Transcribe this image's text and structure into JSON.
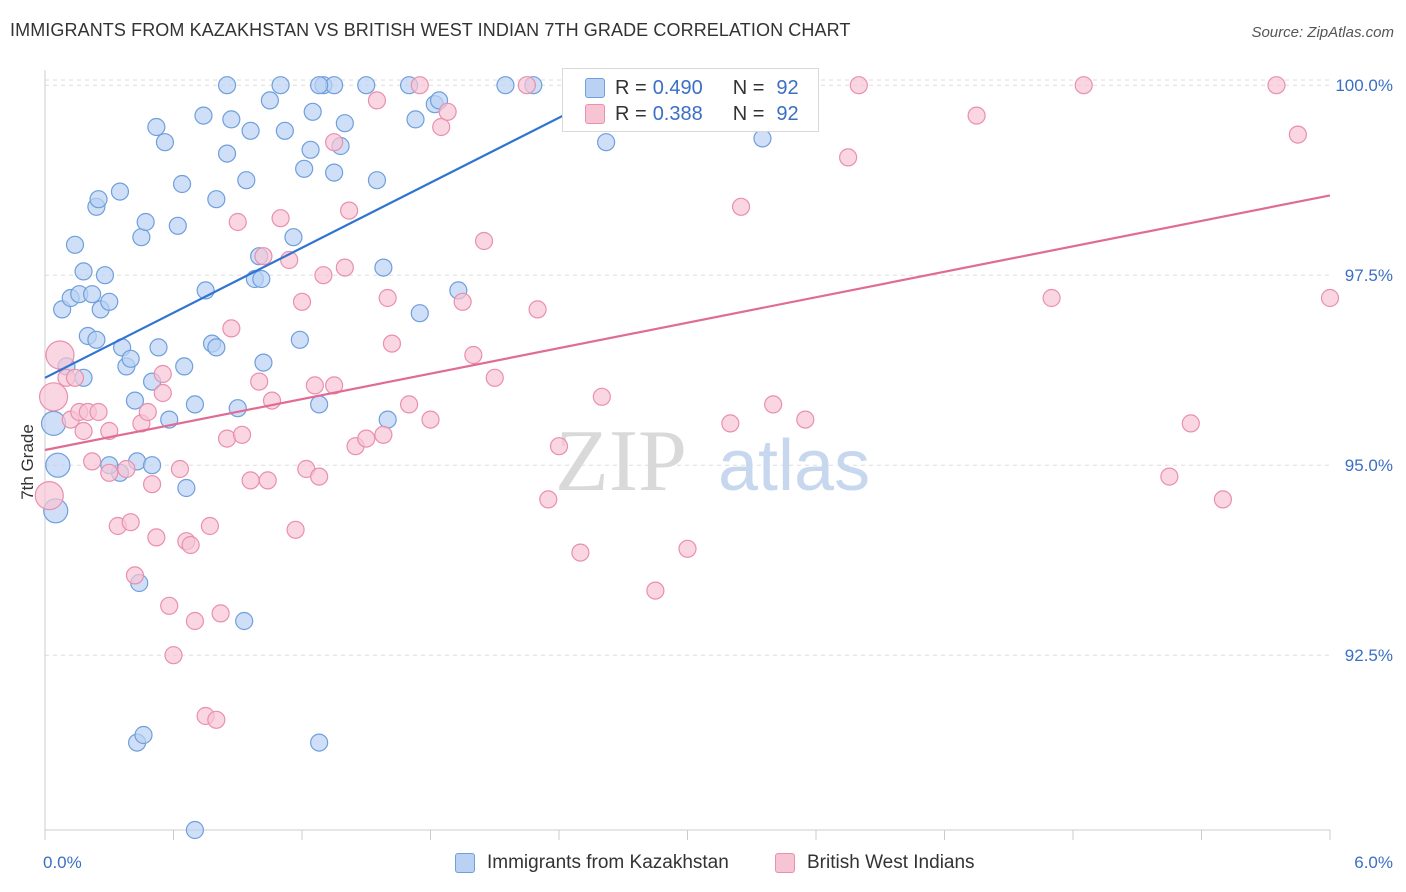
{
  "header": {
    "title": "IMMIGRANTS FROM KAZAKHSTAN VS BRITISH WEST INDIAN 7TH GRADE CORRELATION CHART",
    "source": "Source: ZipAtlas.com"
  },
  "watermark": {
    "zip": "ZIP",
    "atlas": "atlas"
  },
  "colors": {
    "blue_fill": "#b9d1f3",
    "blue_stroke": "#6f9fdc",
    "blue_line": "#2f74d0",
    "pink_fill": "#f7c4d4",
    "pink_stroke": "#ea8fae",
    "pink_line": "#e06c96",
    "axis_label": "#3b6fc4",
    "grid": "#dddddd"
  },
  "legend": {
    "r_label": "R =",
    "n_label": "N =",
    "rows": [
      {
        "r": "0.490",
        "n": "92"
      },
      {
        "r": "0.388",
        "n": "92"
      }
    ]
  },
  "bottom_legend": [
    {
      "label": "Immigrants from Kazakhstan"
    },
    {
      "label": "British West Indians"
    }
  ],
  "chart_data": {
    "type": "scatter",
    "ylabel": "7th Grade",
    "xlim": [
      0,
      6
    ],
    "ylim": [
      90.2,
      100.2
    ],
    "x_tick_labels": [
      {
        "value": 0,
        "label": "0.0%"
      },
      {
        "value": 6,
        "label": "6.0%"
      }
    ],
    "y_ticks": [
      {
        "value": 92.5,
        "label": "92.5%"
      },
      {
        "value": 95.0,
        "label": "95.0%"
      },
      {
        "value": 97.5,
        "label": "97.5%"
      },
      {
        "value": 100.0,
        "label": "100.0%"
      }
    ],
    "x_minor_ticks": [
      0.6,
      1.2,
      1.8,
      2.4,
      3.0,
      3.6,
      4.2,
      4.8,
      5.4,
      6.0
    ],
    "grid": true,
    "legend_position": "top-center",
    "series": [
      {
        "name": "Immigrants from Kazakhstan",
        "color": "#b9d1f3",
        "trend": {
          "x": [
            0.0,
            2.7
          ],
          "y": [
            96.15,
            100.0
          ]
        },
        "points": [
          [
            0.04,
            95.55
          ],
          [
            0.06,
            95.0
          ],
          [
            0.05,
            94.4
          ],
          [
            0.08,
            97.05
          ],
          [
            0.1,
            96.3
          ],
          [
            0.12,
            97.2
          ],
          [
            0.14,
            97.9
          ],
          [
            0.16,
            97.25
          ],
          [
            0.18,
            97.55
          ],
          [
            0.18,
            96.15
          ],
          [
            0.2,
            96.7
          ],
          [
            0.22,
            97.25
          ],
          [
            0.24,
            96.65
          ],
          [
            0.26,
            97.05
          ],
          [
            0.28,
            97.5
          ],
          [
            0.3,
            97.15
          ],
          [
            0.24,
            98.4
          ],
          [
            0.25,
            98.5
          ],
          [
            0.35,
            98.6
          ],
          [
            0.36,
            96.55
          ],
          [
            0.38,
            96.3
          ],
          [
            0.4,
            96.4
          ],
          [
            0.42,
            95.85
          ],
          [
            0.45,
            98.0
          ],
          [
            0.47,
            98.2
          ],
          [
            0.5,
            96.1
          ],
          [
            0.53,
            96.55
          ],
          [
            0.56,
            99.25
          ],
          [
            0.52,
            99.45
          ],
          [
            0.58,
            95.6
          ],
          [
            0.62,
            98.15
          ],
          [
            0.64,
            98.7
          ],
          [
            0.66,
            94.7
          ],
          [
            0.7,
            95.8
          ],
          [
            0.74,
            99.6
          ],
          [
            0.75,
            97.3
          ],
          [
            0.78,
            96.6
          ],
          [
            0.8,
            98.5
          ],
          [
            0.8,
            96.55
          ],
          [
            0.85,
            99.1
          ],
          [
            0.87,
            99.55
          ],
          [
            0.9,
            95.75
          ],
          [
            0.94,
            98.75
          ],
          [
            0.96,
            99.4
          ],
          [
            0.98,
            97.45
          ],
          [
            1.0,
            97.75
          ],
          [
            1.01,
            97.45
          ],
          [
            1.02,
            96.35
          ],
          [
            1.05,
            99.8
          ],
          [
            1.12,
            99.4
          ],
          [
            1.16,
            98.0
          ],
          [
            1.19,
            96.65
          ],
          [
            1.21,
            98.9
          ],
          [
            1.24,
            99.15
          ],
          [
            1.25,
            99.65
          ],
          [
            1.28,
            95.8
          ],
          [
            1.3,
            100.0
          ],
          [
            1.35,
            100.0
          ],
          [
            1.35,
            98.85
          ],
          [
            1.38,
            99.2
          ],
          [
            1.4,
            99.5
          ],
          [
            1.5,
            100.0
          ],
          [
            1.55,
            98.75
          ],
          [
            1.58,
            97.6
          ],
          [
            1.6,
            95.6
          ],
          [
            1.75,
            97.0
          ],
          [
            1.73,
            99.55
          ],
          [
            1.82,
            99.75
          ],
          [
            1.84,
            99.8
          ],
          [
            1.93,
            97.3
          ],
          [
            2.15,
            100.0
          ],
          [
            2.28,
            100.0
          ],
          [
            0.43,
            95.05
          ],
          [
            0.35,
            94.9
          ],
          [
            0.44,
            93.45
          ],
          [
            0.85,
            100.0
          ],
          [
            1.1,
            100.0
          ],
          [
            1.28,
            100.0
          ],
          [
            1.7,
            100.0
          ],
          [
            2.5,
            100.0
          ],
          [
            2.7,
            99.55
          ],
          [
            2.62,
            99.25
          ],
          [
            2.85,
            99.8
          ],
          [
            3.35,
            99.3
          ],
          [
            0.43,
            91.35
          ],
          [
            0.46,
            91.45
          ],
          [
            1.28,
            91.35
          ],
          [
            0.7,
            90.2
          ],
          [
            0.93,
            92.95
          ],
          [
            0.5,
            95.0
          ],
          [
            0.3,
            95.0
          ],
          [
            0.65,
            96.3
          ]
        ]
      },
      {
        "name": "British West Indians",
        "color": "#f7c4d4",
        "trend": {
          "x": [
            0.0,
            6.0
          ],
          "y": [
            95.2,
            98.55
          ]
        },
        "points": [
          [
            0.02,
            94.6
          ],
          [
            0.04,
            95.9
          ],
          [
            0.07,
            96.45
          ],
          [
            0.1,
            96.15
          ],
          [
            0.12,
            95.6
          ],
          [
            0.14,
            96.15
          ],
          [
            0.16,
            95.7
          ],
          [
            0.18,
            95.45
          ],
          [
            0.2,
            95.7
          ],
          [
            0.22,
            95.05
          ],
          [
            0.25,
            95.7
          ],
          [
            0.3,
            95.45
          ],
          [
            0.34,
            94.2
          ],
          [
            0.38,
            94.95
          ],
          [
            0.4,
            94.25
          ],
          [
            0.42,
            93.55
          ],
          [
            0.45,
            95.55
          ],
          [
            0.48,
            95.7
          ],
          [
            0.5,
            94.75
          ],
          [
            0.52,
            94.05
          ],
          [
            0.55,
            96.2
          ],
          [
            0.58,
            93.15
          ],
          [
            0.6,
            92.5
          ],
          [
            0.63,
            94.95
          ],
          [
            0.66,
            94.0
          ],
          [
            0.68,
            93.95
          ],
          [
            0.7,
            92.95
          ],
          [
            0.75,
            91.7
          ],
          [
            0.77,
            94.2
          ],
          [
            0.8,
            91.65
          ],
          [
            0.82,
            93.05
          ],
          [
            0.85,
            95.35
          ],
          [
            0.87,
            96.8
          ],
          [
            0.9,
            98.2
          ],
          [
            0.92,
            95.4
          ],
          [
            0.96,
            94.8
          ],
          [
            1.0,
            96.1
          ],
          [
            1.02,
            97.75
          ],
          [
            1.04,
            94.8
          ],
          [
            1.06,
            95.85
          ],
          [
            1.1,
            98.25
          ],
          [
            1.14,
            97.7
          ],
          [
            1.17,
            94.15
          ],
          [
            1.2,
            97.15
          ],
          [
            1.22,
            94.95
          ],
          [
            1.26,
            96.05
          ],
          [
            1.28,
            94.85
          ],
          [
            1.3,
            97.5
          ],
          [
            1.35,
            96.05
          ],
          [
            1.35,
            99.25
          ],
          [
            1.4,
            97.6
          ],
          [
            1.42,
            98.35
          ],
          [
            1.45,
            95.25
          ],
          [
            1.5,
            95.35
          ],
          [
            1.55,
            99.8
          ],
          [
            1.58,
            95.4
          ],
          [
            1.6,
            97.2
          ],
          [
            1.62,
            96.6
          ],
          [
            1.7,
            95.8
          ],
          [
            1.75,
            100.0
          ],
          [
            1.8,
            95.6
          ],
          [
            1.85,
            99.45
          ],
          [
            1.88,
            99.65
          ],
          [
            1.95,
            97.15
          ],
          [
            2.0,
            96.45
          ],
          [
            2.05,
            97.95
          ],
          [
            2.1,
            96.15
          ],
          [
            2.25,
            100.0
          ],
          [
            2.3,
            97.05
          ],
          [
            2.35,
            94.55
          ],
          [
            2.4,
            95.25
          ],
          [
            2.5,
            93.85
          ],
          [
            2.6,
            95.9
          ],
          [
            2.85,
            93.35
          ],
          [
            3.0,
            93.9
          ],
          [
            3.2,
            95.55
          ],
          [
            3.25,
            98.4
          ],
          [
            3.4,
            95.8
          ],
          [
            3.55,
            95.6
          ],
          [
            3.75,
            99.05
          ],
          [
            3.8,
            100.0
          ],
          [
            4.35,
            99.6
          ],
          [
            4.7,
            97.2
          ],
          [
            4.85,
            100.0
          ],
          [
            5.25,
            94.85
          ],
          [
            5.35,
            95.55
          ],
          [
            5.5,
            94.55
          ],
          [
            5.75,
            100.0
          ],
          [
            5.85,
            99.35
          ],
          [
            6.0,
            97.2
          ],
          [
            0.3,
            94.9
          ],
          [
            0.55,
            95.95
          ]
        ]
      }
    ]
  }
}
